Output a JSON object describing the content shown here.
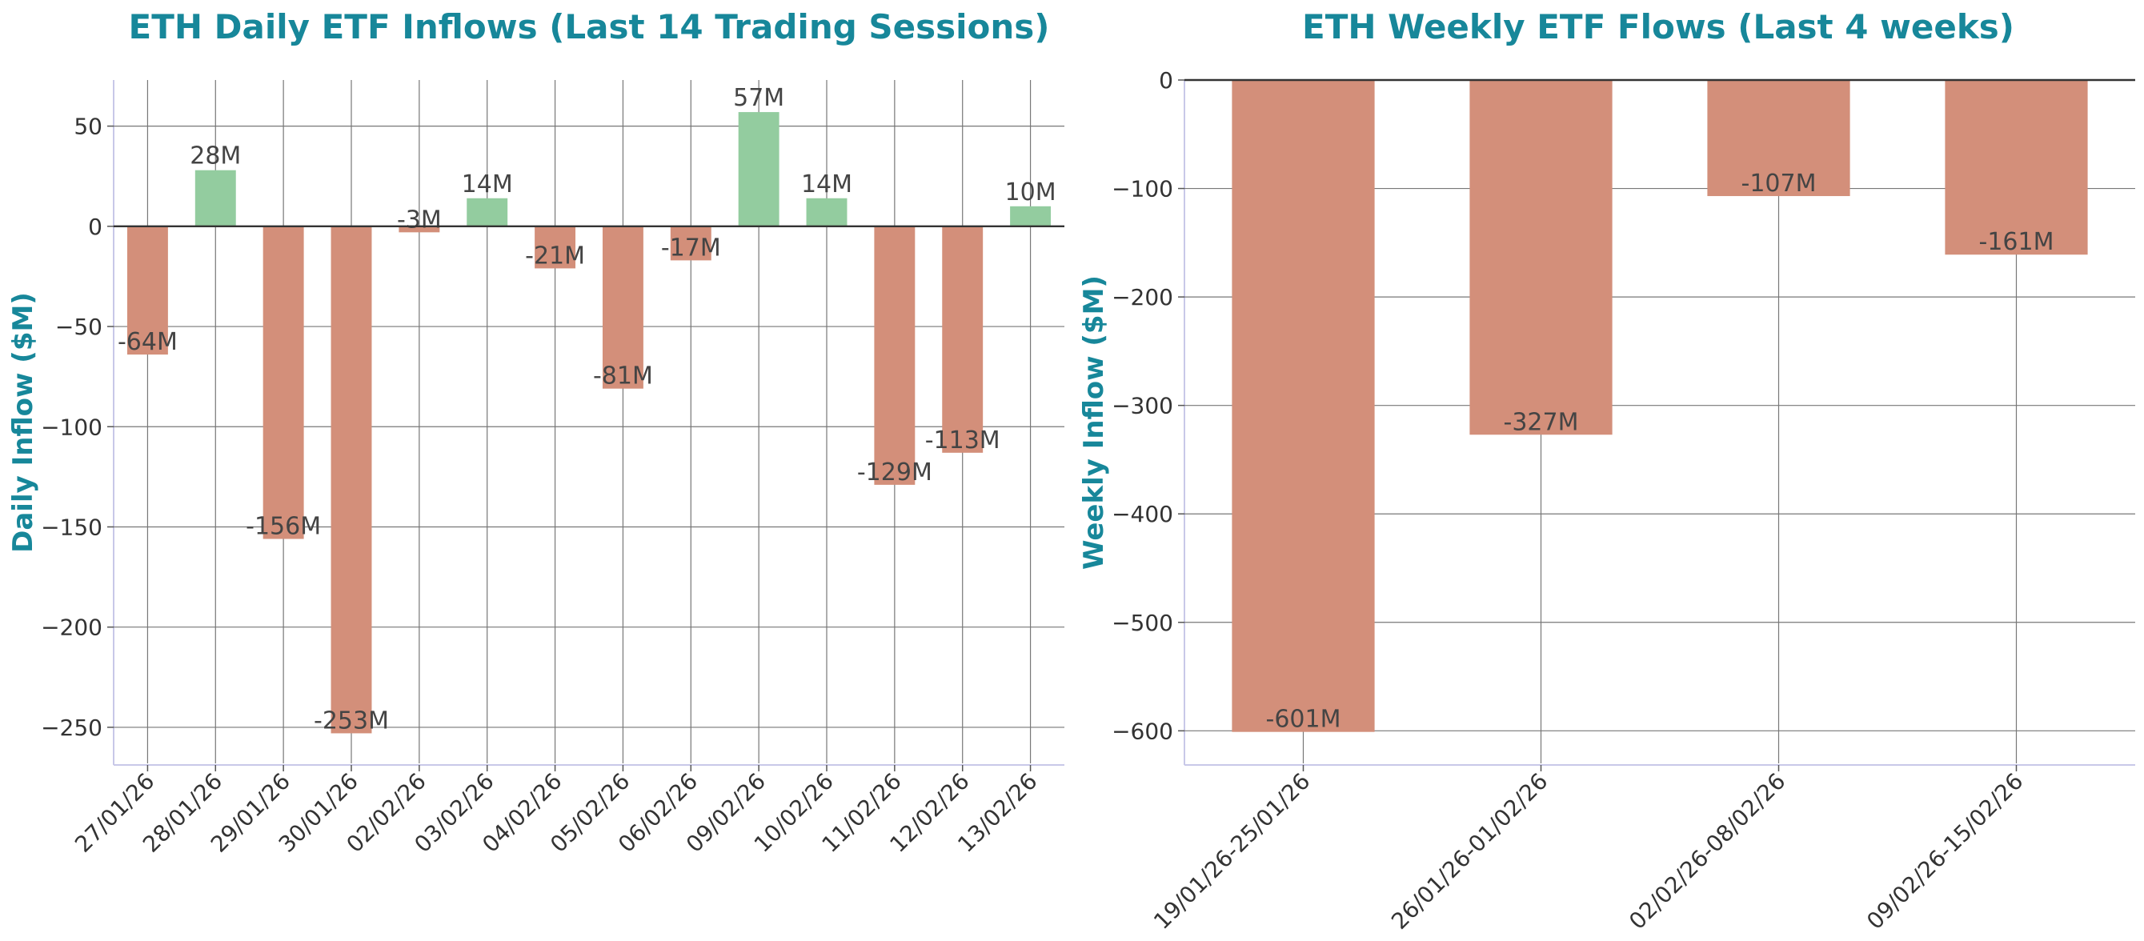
{
  "chart_data": [
    {
      "type": "bar",
      "title": "ETH Daily ETF Inflows (Last 14 Trading Sessions)",
      "ylabel": "Daily Inflow ($M)",
      "xlabel": "",
      "categories": [
        "27/01/26",
        "28/01/26",
        "29/01/26",
        "30/01/26",
        "02/02/26",
        "03/02/26",
        "04/02/26",
        "05/02/26",
        "06/02/26",
        "09/02/26",
        "10/02/26",
        "11/02/26",
        "12/02/26",
        "13/02/26"
      ],
      "values": [
        -64,
        28,
        -156,
        -253,
        -3,
        14,
        -21,
        -81,
        -17,
        57,
        14,
        -129,
        -113,
        10
      ],
      "data_labels": [
        "-64M",
        "28M",
        "-156M",
        "-253M",
        "-3M",
        "14M",
        "-21M",
        "-81M",
        "-17M",
        "57M",
        "14M",
        "-129M",
        "-113M",
        "10M"
      ],
      "ylim": [
        -268,
        73
      ],
      "yticks": [
        50,
        0,
        -50,
        -100,
        -150,
        -200,
        -250
      ],
      "ytick_labels": [
        "50",
        "0",
        "−50",
        "−100",
        "−150",
        "−200",
        "−250"
      ],
      "grid": true,
      "colors": {
        "positive": "#93cc9f",
        "negative": "#d38f7a"
      }
    },
    {
      "type": "bar",
      "title": "ETH Weekly ETF Flows (Last 4 weeks)",
      "ylabel": "Weekly Inflow ($M)",
      "xlabel": "",
      "categories": [
        "19/01/26-25/01/26",
        "26/01/26-01/02/26",
        "02/02/26-08/02/26",
        "09/02/26-15/02/26"
      ],
      "values": [
        -601,
        -327,
        -107,
        -161
      ],
      "data_labels": [
        "-601M",
        "-327M",
        "-107M",
        "-161M"
      ],
      "ylim": [
        -630,
        0
      ],
      "yticks": [
        0,
        -100,
        -200,
        -300,
        -400,
        -500,
        -600
      ],
      "ytick_labels": [
        "0",
        "−100",
        "−200",
        "−300",
        "−400",
        "−500",
        "−600"
      ],
      "grid": true,
      "colors": {
        "positive": "#93cc9f",
        "negative": "#d38f7a"
      }
    }
  ]
}
